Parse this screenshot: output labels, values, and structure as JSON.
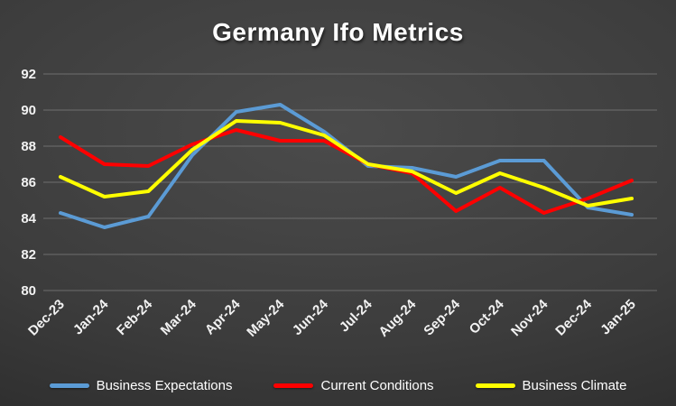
{
  "chart_data": {
    "type": "line",
    "title": "Germany Ifo Metrics",
    "xlabel": "",
    "ylabel": "",
    "ylim": [
      80,
      92
    ],
    "ytick_step": 2,
    "grid": true,
    "legend_position": "bottom",
    "categories": [
      "Dec-23",
      "Jan-24",
      "Feb-24",
      "Mar-24",
      "Apr-24",
      "May-24",
      "Jun-24",
      "Jul-24",
      "Aug-24",
      "Sep-24",
      "Oct-24",
      "Nov-24",
      "Dec-24",
      "Jan-25"
    ],
    "series": [
      {
        "name": "Business Expectations",
        "color": "#5B9BD5",
        "values": [
          84.3,
          83.5,
          84.1,
          87.5,
          89.9,
          90.3,
          88.8,
          86.9,
          86.8,
          86.3,
          87.2,
          87.2,
          84.6,
          84.2
        ]
      },
      {
        "name": "Current Conditions",
        "color": "#FF0000",
        "values": [
          88.5,
          87.0,
          86.9,
          88.1,
          88.9,
          88.3,
          88.3,
          87.0,
          86.5,
          84.4,
          85.7,
          84.3,
          85.1,
          86.1
        ]
      },
      {
        "name": "Business Climate",
        "color": "#FFFF00",
        "values": [
          86.3,
          85.2,
          85.5,
          87.8,
          89.4,
          89.3,
          88.6,
          87.0,
          86.6,
          85.4,
          86.5,
          85.7,
          84.7,
          85.1
        ]
      }
    ]
  }
}
